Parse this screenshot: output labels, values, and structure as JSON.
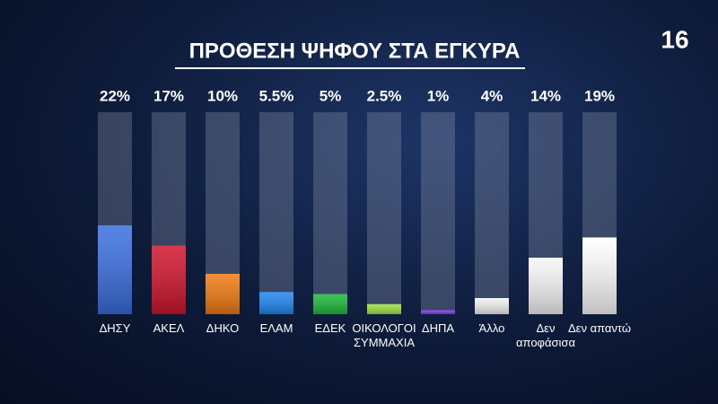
{
  "chart_data": {
    "type": "bar",
    "title": "ΠΡΟΘΕΣΗ ΨΗΦΟΥ ΣΤΑ ΕΓΚΥΡΑ",
    "page_number": "16",
    "categories": [
      "ΔΗΣΥ",
      "ΑΚΕΛ",
      "ΔΗΚΟ",
      "ΕΛΑΜ",
      "ΕΔΕΚ",
      "ΟΙΚΟΛΟΓΟΙ ΣΥΜΜΑΧΙΑ",
      "ΔΗΠΑ",
      "Άλλο",
      "Δεν αποφάσισα",
      "Δεν απαντώ"
    ],
    "values": [
      22,
      17,
      10,
      5.5,
      5,
      2.5,
      1,
      4,
      14,
      19
    ],
    "value_labels": [
      "22%",
      "17%",
      "10%",
      "5.5%",
      "5%",
      "2.5%",
      "1%",
      "4%",
      "14%",
      "19%"
    ],
    "colors": [
      "#3a6ee0",
      "#d0142c",
      "#f07a12",
      "#1f86f0",
      "#1fb83a",
      "#9ee046",
      "#7a3be0",
      "#f2f2f2",
      "#f7f7f7",
      "#ffffff"
    ],
    "ylim": [
      0,
      50
    ]
  }
}
